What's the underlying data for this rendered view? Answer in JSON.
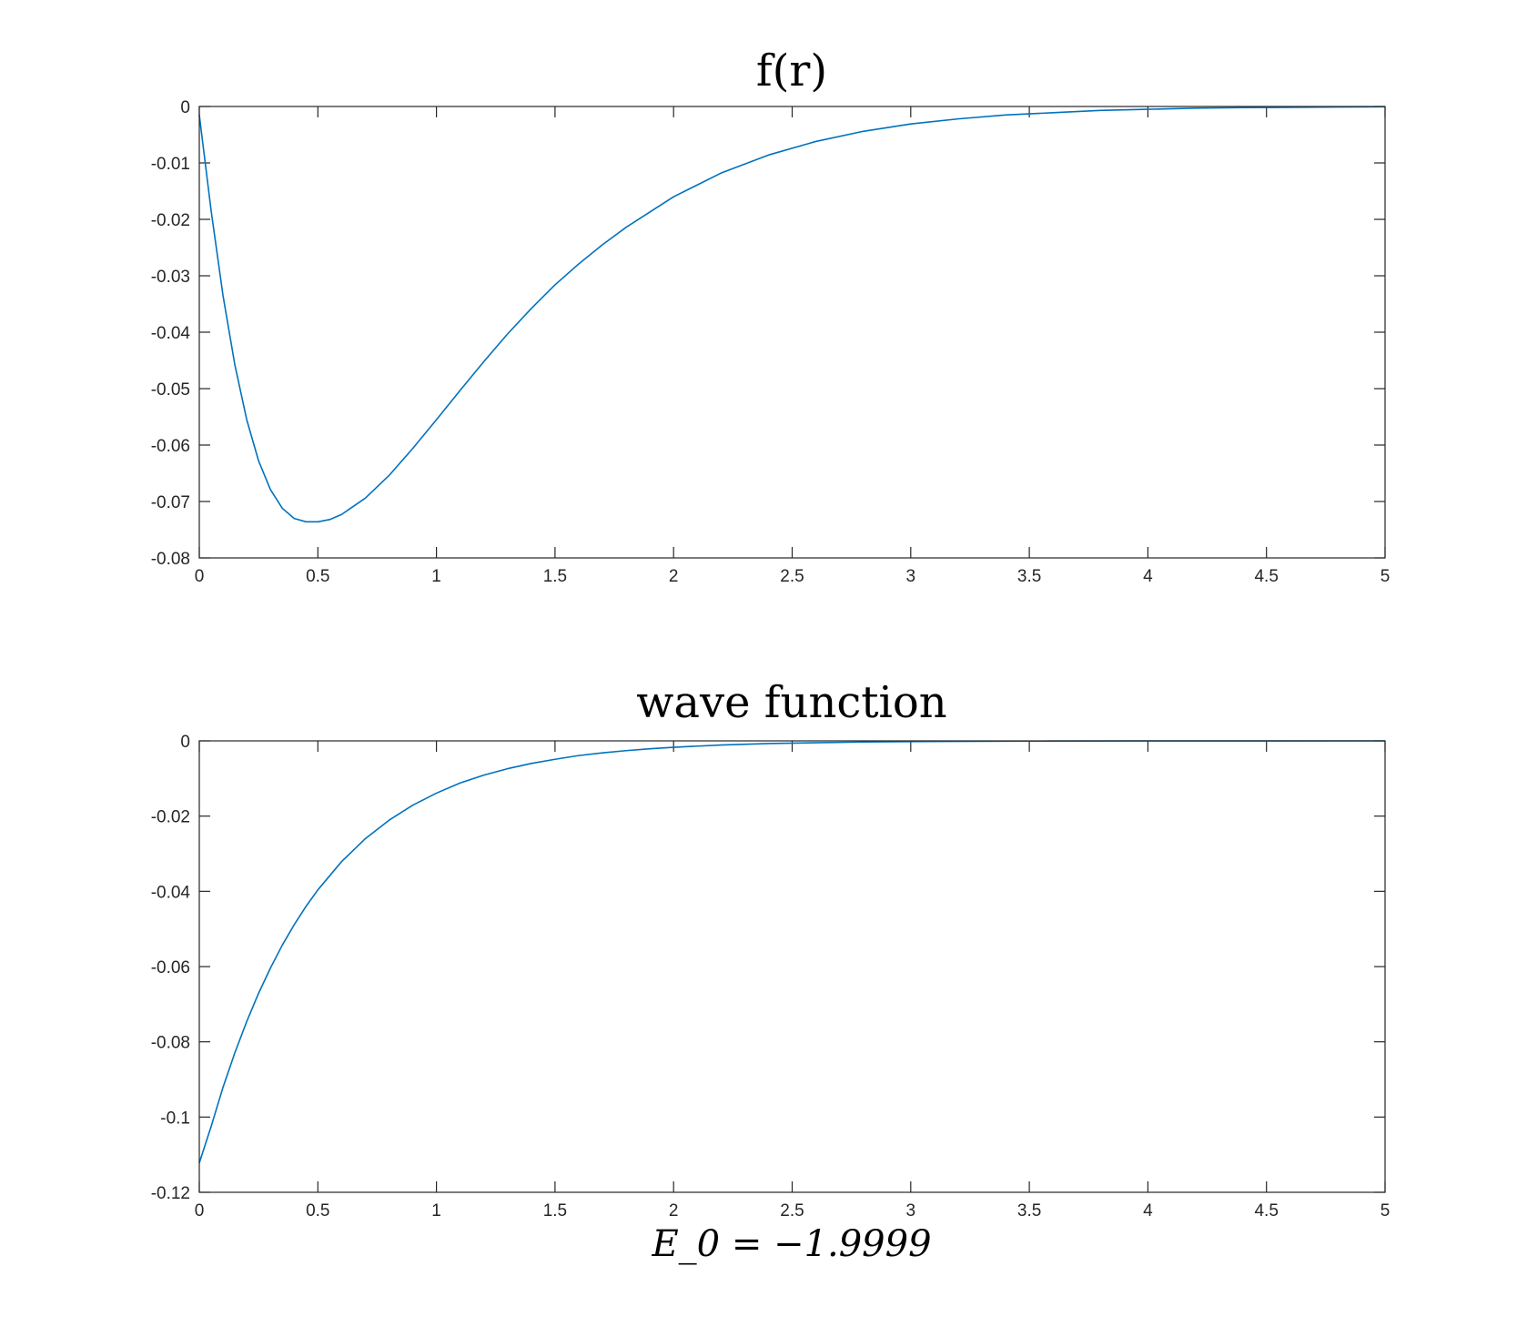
{
  "colors": {
    "series": "#0072BD",
    "axis": "#262626",
    "background": "#ffffff"
  },
  "chart_data": [
    {
      "type": "line",
      "title": "f(r)",
      "xlabel": "",
      "ylabel": "",
      "xlim": [
        0,
        5
      ],
      "ylim": [
        -0.08,
        0
      ],
      "xticks": [
        0,
        0.5,
        1,
        1.5,
        2,
        2.5,
        3,
        3.5,
        4,
        4.5,
        5
      ],
      "xtick_labels": [
        "0",
        "0.5",
        "1",
        "1.5",
        "2",
        "2.5",
        "3",
        "3.5",
        "4",
        "4.5",
        "5"
      ],
      "yticks": [
        0,
        -0.01,
        -0.02,
        -0.03,
        -0.04,
        -0.05,
        -0.06,
        -0.07,
        -0.08
      ],
      "ytick_labels": [
        "0",
        "-0.01",
        "-0.02",
        "-0.03",
        "-0.04",
        "-0.05",
        "-0.06",
        "-0.07",
        "-0.08"
      ],
      "grid": false,
      "series": [
        {
          "x": [
            0,
            0.05,
            0.1,
            0.15,
            0.2,
            0.25,
            0.3,
            0.35,
            0.4,
            0.45,
            0.5,
            0.55,
            0.6,
            0.7,
            0.8,
            0.9,
            1.0,
            1.1,
            1.2,
            1.3,
            1.4,
            1.5,
            1.6,
            1.7,
            1.8,
            1.9,
            2.0,
            2.2,
            2.4,
            2.6,
            2.8,
            3.0,
            3.2,
            3.4,
            3.6,
            3.8,
            4.0,
            4.2,
            4.4,
            4.6,
            4.8,
            5.0
          ],
          "y": [
            -0.0015,
            -0.0185,
            -0.0335,
            -0.0458,
            -0.0555,
            -0.0628,
            -0.0679,
            -0.0712,
            -0.073,
            -0.0736,
            -0.0736,
            -0.0732,
            -0.0723,
            -0.0694,
            -0.0654,
            -0.0606,
            -0.0555,
            -0.0503,
            -0.0452,
            -0.0403,
            -0.0358,
            -0.0316,
            -0.0279,
            -0.0245,
            -0.0214,
            -0.0187,
            -0.016,
            -0.0118,
            -0.0086,
            -0.0062,
            -0.0044,
            -0.0031,
            -0.0022,
            -0.0015,
            -0.0011,
            -0.0007,
            -0.0005,
            -0.0003,
            -0.0002,
            -0.00015,
            -0.0001,
            -5e-05
          ]
        }
      ]
    },
    {
      "type": "line",
      "title": "wave function",
      "xlabel": "E_0 = −1.9999",
      "ylabel": "",
      "xlim": [
        0,
        5
      ],
      "ylim": [
        -0.12,
        0
      ],
      "xticks": [
        0,
        0.5,
        1,
        1.5,
        2,
        2.5,
        3,
        3.5,
        4,
        4.5,
        5
      ],
      "xtick_labels": [
        "0",
        "0.5",
        "1",
        "1.5",
        "2",
        "2.5",
        "3",
        "3.5",
        "4",
        "4.5",
        "5"
      ],
      "yticks": [
        0,
        -0.02,
        -0.04,
        -0.06,
        -0.08,
        -0.1,
        -0.12
      ],
      "ytick_labels": [
        "0",
        "-0.02",
        "-0.04",
        "-0.06",
        "-0.08",
        "-0.1",
        "-0.12"
      ],
      "grid": false,
      "series": [
        {
          "x": [
            0,
            0.05,
            0.1,
            0.15,
            0.2,
            0.25,
            0.3,
            0.35,
            0.4,
            0.45,
            0.5,
            0.6,
            0.7,
            0.8,
            0.9,
            1.0,
            1.1,
            1.2,
            1.3,
            1.4,
            1.5,
            1.6,
            1.7,
            1.8,
            1.9,
            2.0,
            2.2,
            2.4,
            2.6,
            2.8,
            3.0,
            3.3,
            3.6,
            4.0,
            4.5,
            5.0
          ],
          "y": [
            -0.1122,
            -0.1025,
            -0.0921,
            -0.0829,
            -0.0746,
            -0.0671,
            -0.0604,
            -0.0543,
            -0.0489,
            -0.044,
            -0.0396,
            -0.0321,
            -0.026,
            -0.0211,
            -0.0171,
            -0.0139,
            -0.0112,
            -0.0091,
            -0.0074,
            -0.006,
            -0.0049,
            -0.0039,
            -0.0032,
            -0.0026,
            -0.0021,
            -0.0017,
            -0.0011,
            -0.0007,
            -0.0005,
            -0.0003,
            -0.0002,
            -0.0001,
            -5e-05,
            -2e-05,
            -1e-05,
            0
          ]
        }
      ]
    }
  ]
}
